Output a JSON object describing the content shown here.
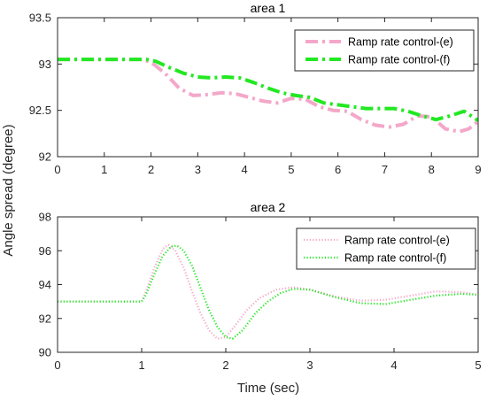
{
  "figure": {
    "ylabel": "Angle spread (degree)",
    "xlabel": "Time (sec)"
  },
  "chart_data": [
    {
      "type": "line",
      "title": "area 1",
      "xlabel": "",
      "ylabel": "Angle spread (degree)",
      "xlim": [
        0,
        9
      ],
      "ylim": [
        92,
        93.5
      ],
      "xticks": [
        "0",
        "1",
        "2",
        "3",
        "4",
        "5",
        "6",
        "7",
        "8",
        "9"
      ],
      "yticks": [
        "92",
        "92.5",
        "93",
        "93.5"
      ],
      "legend": "top-right",
      "grid": false,
      "series": [
        {
          "name": "Ramp rate control-(e)",
          "color": "#f4a7c9",
          "style": "dashdot",
          "x": [
            0,
            1,
            1.8,
            2.0,
            2.3,
            2.6,
            2.9,
            3.2,
            3.5,
            3.8,
            4.1,
            4.4,
            4.7,
            5.0,
            5.3,
            5.6,
            5.9,
            6.2,
            6.5,
            6.8,
            7.1,
            7.4,
            7.7,
            8.0,
            8.3,
            8.6,
            8.8,
            9.0
          ],
          "y": [
            93.05,
            93.05,
            93.05,
            93.02,
            92.9,
            92.74,
            92.66,
            92.67,
            92.69,
            92.68,
            92.64,
            92.6,
            92.58,
            92.63,
            92.62,
            92.54,
            92.5,
            92.49,
            92.4,
            92.34,
            92.32,
            92.35,
            92.44,
            92.43,
            92.3,
            92.27,
            92.3,
            92.38
          ]
        },
        {
          "name": "Ramp rate control-(f)",
          "color": "#22e822",
          "style": "dashdot",
          "x": [
            0,
            1,
            1.9,
            2.1,
            2.4,
            2.7,
            3.0,
            3.3,
            3.6,
            3.9,
            4.2,
            4.5,
            4.8,
            5.1,
            5.4,
            5.7,
            6.0,
            6.3,
            6.6,
            6.9,
            7.2,
            7.5,
            7.8,
            8.1,
            8.4,
            8.7,
            9.0
          ],
          "y": [
            93.05,
            93.05,
            93.05,
            93.03,
            92.96,
            92.9,
            92.86,
            92.85,
            92.86,
            92.85,
            92.8,
            92.74,
            92.69,
            92.66,
            92.64,
            92.58,
            92.56,
            92.54,
            92.52,
            92.52,
            92.52,
            92.49,
            92.44,
            92.4,
            92.44,
            92.49,
            92.39
          ]
        }
      ]
    },
    {
      "type": "line",
      "title": "area 2",
      "xlabel": "Time (sec)",
      "ylabel": "Angle spread (degree)",
      "xlim": [
        0,
        5
      ],
      "ylim": [
        90,
        98
      ],
      "xticks": [
        "0",
        "1",
        "2",
        "3",
        "4",
        "5"
      ],
      "yticks": [
        "90",
        "92",
        "94",
        "96",
        "98"
      ],
      "legend": "top-right",
      "grid": false,
      "series": [
        {
          "name": "Ramp rate control-(e)",
          "color": "#f4a7c9",
          "style": "dotted",
          "x": [
            0,
            1.0,
            1.05,
            1.15,
            1.25,
            1.32,
            1.4,
            1.5,
            1.6,
            1.7,
            1.8,
            1.9,
            2.0,
            2.1,
            2.25,
            2.4,
            2.6,
            2.8,
            3.0,
            3.3,
            3.6,
            3.9,
            4.2,
            4.5,
            4.8,
            5.0
          ],
          "y": [
            93.0,
            93.0,
            93.6,
            95.0,
            96.1,
            96.35,
            96.0,
            95.0,
            93.6,
            92.3,
            91.3,
            90.8,
            90.9,
            91.5,
            92.5,
            93.2,
            93.7,
            93.85,
            93.7,
            93.3,
            93.05,
            93.1,
            93.35,
            93.6,
            93.55,
            93.4
          ]
        },
        {
          "name": "Ramp rate control-(f)",
          "color": "#22e822",
          "style": "dotted",
          "x": [
            0,
            1.0,
            1.05,
            1.15,
            1.25,
            1.35,
            1.42,
            1.5,
            1.6,
            1.7,
            1.8,
            1.9,
            2.0,
            2.08,
            2.2,
            2.35,
            2.5,
            2.65,
            2.8,
            3.0,
            3.3,
            3.6,
            3.9,
            4.2,
            4.5,
            4.8,
            5.0
          ],
          "y": [
            93.0,
            93.0,
            93.4,
            94.6,
            95.7,
            96.25,
            96.3,
            96.0,
            95.1,
            93.8,
            92.5,
            91.5,
            90.9,
            90.8,
            91.3,
            92.3,
            93.0,
            93.5,
            93.75,
            93.7,
            93.25,
            92.9,
            92.85,
            93.1,
            93.35,
            93.45,
            93.4
          ]
        }
      ]
    }
  ]
}
